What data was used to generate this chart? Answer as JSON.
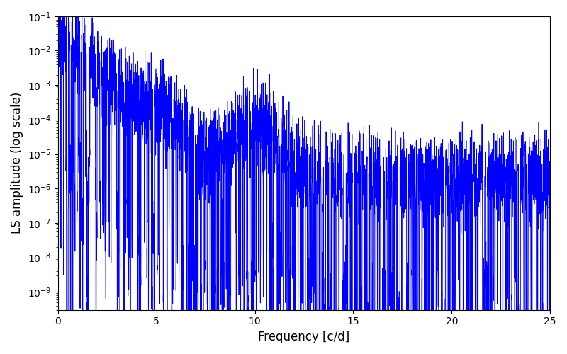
{
  "title": "",
  "xlabel": "Frequency [c/d]",
  "ylabel": "LS amplitude (log scale)",
  "xlim": [
    0,
    25
  ],
  "ylim": [
    3e-10,
    0.1
  ],
  "line_color": "#0000ff",
  "line_width": 0.7,
  "background_color": "#ffffff",
  "figsize": [
    8.0,
    5.0
  ],
  "dpi": 100,
  "seed": 42,
  "n_points": 5000,
  "xlabel_fontsize": 12,
  "ylabel_fontsize": 12
}
